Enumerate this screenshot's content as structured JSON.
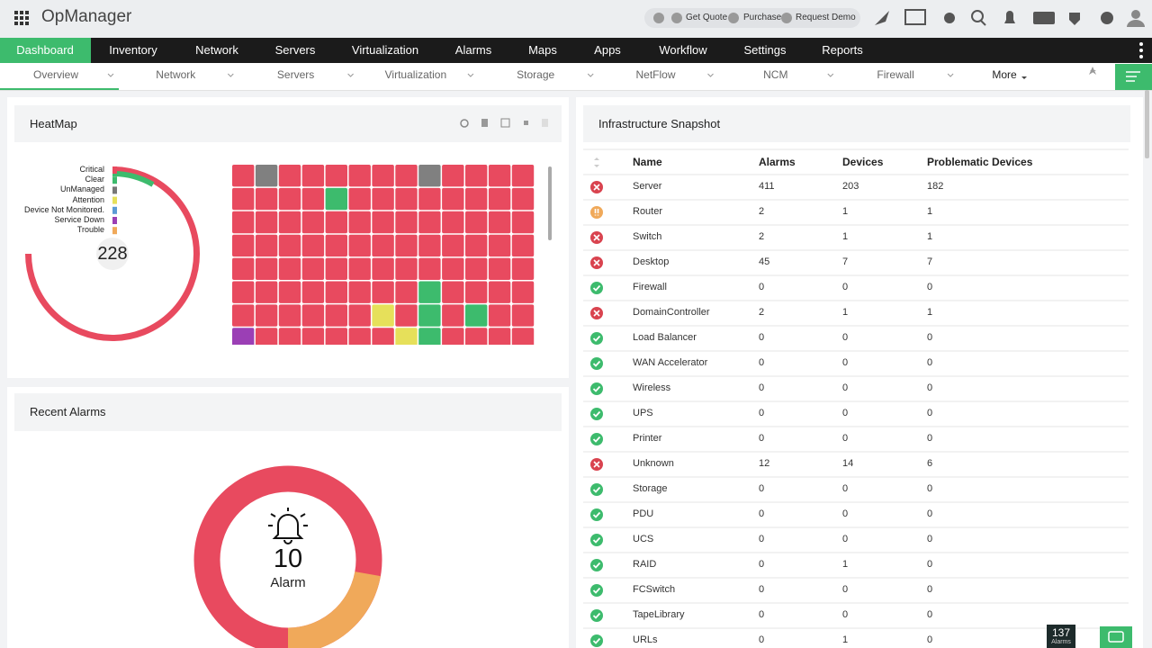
{
  "header": {
    "app_name": "OpManager",
    "links": [
      "Get Quote",
      "Purchase",
      "Request Demo"
    ]
  },
  "main_nav": [
    "Dashboard",
    "Inventory",
    "Network",
    "Servers",
    "Virtualization",
    "Alarms",
    "Maps",
    "Apps",
    "Workflow",
    "Settings",
    "Reports"
  ],
  "sub_nav": [
    "Overview",
    "Network",
    "Servers",
    "Virtualization",
    "Storage",
    "NetFlow",
    "NCM",
    "Firewall",
    "More"
  ],
  "heatmap": {
    "title": "HeatMap",
    "legend": [
      "Critical",
      "Clear",
      "UnManaged",
      "Attention",
      "Device Not Monitored.",
      "Service Down",
      "Trouble"
    ],
    "total": 228
  },
  "recent_alarms": {
    "title": "Recent Alarms",
    "count": 10,
    "label": "Alarm"
  },
  "snapshot": {
    "title": "Infrastructure Snapshot",
    "columns": [
      "Name",
      "Alarms",
      "Devices",
      "Problematic Devices"
    ],
    "rows": [
      {
        "name": "Server",
        "alarms": 411,
        "devices": 203,
        "problematic": 182,
        "status": "critical"
      },
      {
        "name": "Router",
        "alarms": 2,
        "devices": 1,
        "problematic": 1,
        "status": "warning"
      },
      {
        "name": "Switch",
        "alarms": 2,
        "devices": 1,
        "problematic": 1,
        "status": "critical"
      },
      {
        "name": "Desktop",
        "alarms": 45,
        "devices": 7,
        "problematic": 7,
        "status": "critical"
      },
      {
        "name": "Firewall",
        "alarms": 0,
        "devices": 0,
        "problematic": 0,
        "status": "ok"
      },
      {
        "name": "DomainController",
        "alarms": 2,
        "devices": 1,
        "problematic": 1,
        "status": "critical"
      },
      {
        "name": "Load Balancer",
        "alarms": 0,
        "devices": 0,
        "problematic": 0,
        "status": "ok"
      },
      {
        "name": "WAN Accelerator",
        "alarms": 0,
        "devices": 0,
        "problematic": 0,
        "status": "ok"
      },
      {
        "name": "Wireless",
        "alarms": 0,
        "devices": 0,
        "problematic": 0,
        "status": "ok"
      },
      {
        "name": "UPS",
        "alarms": 0,
        "devices": 0,
        "problematic": 0,
        "status": "ok"
      },
      {
        "name": "Printer",
        "alarms": 0,
        "devices": 0,
        "problematic": 0,
        "status": "ok"
      },
      {
        "name": "Unknown",
        "alarms": 12,
        "devices": 14,
        "problematic": 6,
        "status": "critical"
      },
      {
        "name": "Storage",
        "alarms": 0,
        "devices": 0,
        "problematic": 0,
        "status": "ok"
      },
      {
        "name": "PDU",
        "alarms": 0,
        "devices": 0,
        "problematic": 0,
        "status": "ok"
      },
      {
        "name": "UCS",
        "alarms": 0,
        "devices": 0,
        "problematic": 0,
        "status": "ok"
      },
      {
        "name": "RAID",
        "alarms": 0,
        "devices": 1,
        "problematic": 0,
        "status": "ok"
      },
      {
        "name": "FCSwitch",
        "alarms": 0,
        "devices": 0,
        "problematic": 0,
        "status": "ok"
      },
      {
        "name": "TapeLibrary",
        "alarms": 0,
        "devices": 0,
        "problematic": 0,
        "status": "ok"
      },
      {
        "name": "URLs",
        "alarms": 0,
        "devices": 1,
        "problematic": 0,
        "status": "ok"
      }
    ]
  },
  "alarm_badge": {
    "count": 137,
    "label": "Alarms"
  }
}
